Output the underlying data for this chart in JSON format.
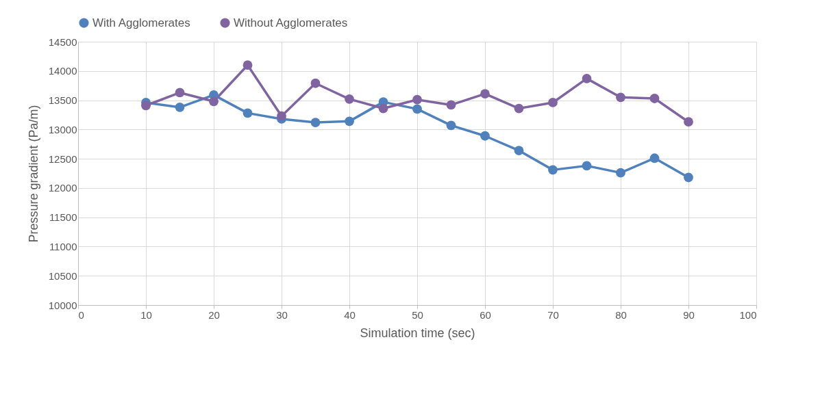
{
  "chart_data": {
    "type": "line",
    "xlabel": "Simulation time (sec)",
    "ylabel": "Pressure gradient (Pa/m)",
    "x": [
      10,
      15,
      20,
      25,
      30,
      35,
      40,
      45,
      50,
      55,
      60,
      65,
      70,
      75,
      80,
      85,
      90
    ],
    "series": [
      {
        "name": "With Agglomerates",
        "color": "#4f81bd",
        "values": [
          13460,
          13380,
          13590,
          13280,
          13180,
          13120,
          13140,
          13470,
          13350,
          13070,
          12890,
          12640,
          12310,
          12380,
          12260,
          12510,
          12180
        ]
      },
      {
        "name": "Without Agglomerates",
        "color": "#8064a2",
        "values": [
          13410,
          13630,
          13480,
          14100,
          13230,
          13790,
          13520,
          13360,
          13510,
          13420,
          13610,
          13360,
          13460,
          13870,
          13550,
          13530,
          13130
        ]
      }
    ],
    "xlim": [
      0,
      100
    ],
    "xticks": [
      0,
      10,
      20,
      30,
      40,
      50,
      60,
      70,
      80,
      90,
      100
    ],
    "ylim": [
      10000,
      14500
    ],
    "yticks": [
      10000,
      10500,
      11000,
      11500,
      12000,
      12500,
      13000,
      13500,
      14000,
      14500
    ],
    "grid": true,
    "legend": "top",
    "marker": "circle",
    "line_style": "solid"
  }
}
